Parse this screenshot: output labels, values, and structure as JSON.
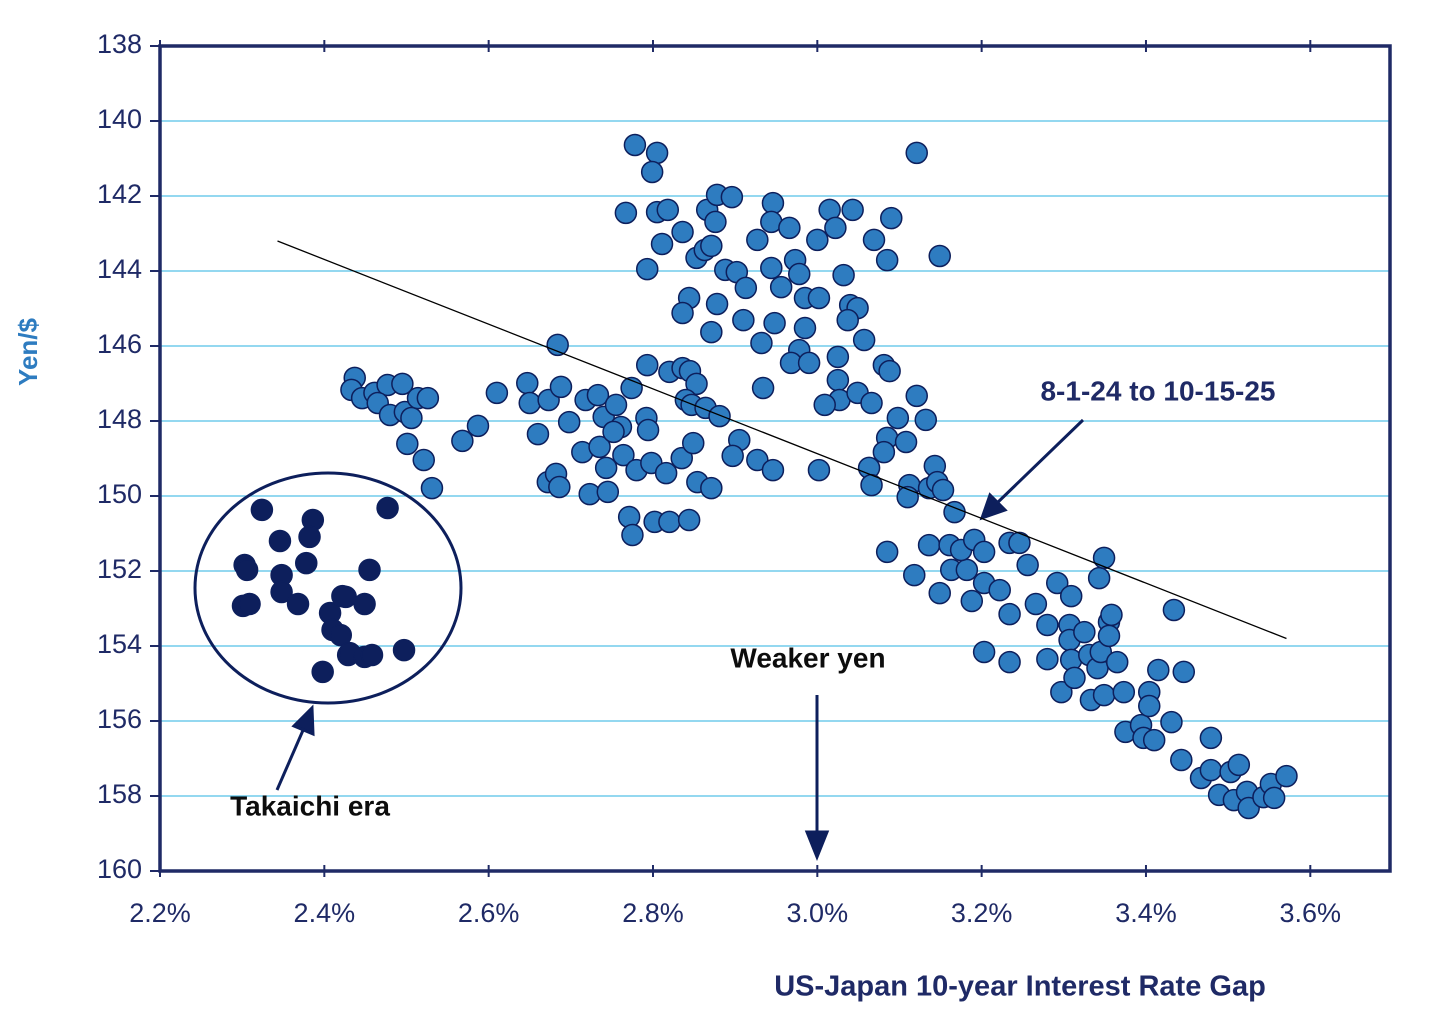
{
  "chart_data": {
    "type": "scatter",
    "x_label": "US-Japan 10-year Interest Rate Gap",
    "y_label": "Yen/$",
    "xlim": [
      2.2,
      3.697
    ],
    "ylim": [
      138,
      160
    ],
    "y_inverted": true,
    "grid": true,
    "xticks": [
      {
        "value": 2.2,
        "label": "2.2%"
      },
      {
        "value": 2.4,
        "label": "2.4%"
      },
      {
        "value": 2.6,
        "label": "2.6%"
      },
      {
        "value": 2.8,
        "label": "2.8%"
      },
      {
        "value": 3.0,
        "label": "3.0%"
      },
      {
        "value": 3.2,
        "label": "3.2%"
      },
      {
        "value": 3.4,
        "label": "3.4%"
      },
      {
        "value": 3.6,
        "label": "3.6%"
      }
    ],
    "yticks": [
      138,
      140,
      142,
      144,
      146,
      148,
      150,
      152,
      154,
      156,
      158,
      160
    ],
    "annotations": [
      "8-1-24 to 10-15-25",
      "Weaker yen",
      "Takaichi era"
    ],
    "trendline": {
      "x": [
        2.343,
        3.571
      ],
      "y": [
        143.2,
        153.8
      ],
      "color": "#000000"
    },
    "series": [
      {
        "color": "#2e7cc0",
        "x": [
          2.437,
          2.433,
          2.446,
          2.461,
          2.477,
          2.465,
          2.48,
          2.495,
          2.498,
          2.506,
          2.514,
          2.526,
          2.501,
          2.521,
          2.531,
          2.568,
          2.587,
          2.61,
          2.647,
          2.65,
          2.673,
          2.684,
          2.688,
          2.66,
          2.698,
          2.672,
          2.682,
          2.686,
          2.714,
          2.723,
          2.718,
          2.733,
          2.74,
          2.735,
          2.743,
          2.745,
          2.755,
          2.761,
          2.752,
          2.764,
          2.774,
          2.78,
          2.771,
          2.775,
          2.792,
          2.794,
          2.793,
          2.798,
          2.802,
          2.816,
          2.82,
          2.82,
          2.836,
          2.845,
          2.853,
          2.84,
          2.847,
          2.835,
          2.849,
          2.844,
          2.854,
          2.871,
          2.864,
          2.881,
          2.778,
          2.805,
          2.799,
          2.767,
          2.805,
          2.818,
          2.811,
          2.793,
          2.836,
          2.853,
          2.863,
          2.844,
          2.836,
          2.871,
          2.866,
          2.878,
          2.896,
          2.876,
          2.871,
          2.888,
          2.878,
          2.902,
          2.913,
          2.91,
          2.932,
          2.934,
          2.946,
          2.944,
          2.927,
          2.944,
          2.956,
          2.948,
          2.966,
          2.973,
          2.978,
          2.985,
          2.985,
          2.978,
          2.968,
          2.99,
          3.0,
          3.015,
          3.022,
          3.043,
          3.032,
          3.002,
          3.04,
          3.049,
          3.037,
          3.057,
          3.025,
          3.025,
          3.027,
          3.009,
          3.049,
          3.066,
          3.069,
          3.09,
          3.085,
          3.081,
          3.088,
          3.121,
          3.149,
          2.905,
          2.897,
          2.927,
          2.946,
          3.002,
          3.063,
          3.066,
          3.085,
          3.081,
          3.098,
          3.108,
          3.121,
          3.132,
          3.085,
          3.118,
          3.112,
          3.11,
          3.136,
          3.143,
          3.146,
          3.153,
          3.167,
          3.136,
          3.161,
          3.149,
          3.163,
          3.182,
          3.175,
          3.191,
          3.203,
          3.188,
          3.203,
          3.203,
          3.222,
          3.234,
          3.246,
          3.234,
          3.234,
          3.256,
          3.266,
          3.28,
          3.28,
          3.292,
          3.297,
          3.309,
          3.307,
          3.307,
          3.309,
          3.313,
          3.325,
          3.331,
          3.333,
          3.341,
          3.345,
          3.343,
          3.349,
          3.355,
          3.355,
          3.358,
          3.349,
          3.365,
          3.373,
          3.375,
          3.394,
          3.404,
          3.404,
          3.397,
          3.41,
          3.415,
          3.431,
          3.434,
          3.443,
          3.446,
          3.467,
          3.479,
          3.479,
          3.489,
          3.507,
          3.503,
          3.513,
          3.523,
          3.525,
          3.543,
          3.552,
          3.556,
          3.571
        ],
        "y": [
          146.85,
          147.17,
          147.39,
          147.25,
          147.04,
          147.52,
          147.84,
          147.01,
          147.76,
          147.92,
          147.39,
          147.39,
          148.61,
          149.04,
          149.79,
          148.53,
          148.13,
          147.25,
          146.99,
          147.52,
          147.44,
          145.97,
          147.09,
          148.35,
          148.03,
          149.63,
          149.41,
          149.76,
          148.83,
          149.95,
          147.44,
          147.31,
          147.89,
          148.69,
          149.25,
          149.89,
          147.57,
          148.16,
          148.29,
          148.91,
          147.12,
          149.31,
          150.56,
          151.04,
          147.92,
          148.24,
          146.51,
          149.12,
          150.69,
          149.39,
          150.69,
          146.69,
          146.59,
          146.67,
          147.01,
          147.44,
          147.57,
          148.99,
          148.59,
          150.64,
          149.63,
          149.79,
          147.65,
          147.87,
          140.64,
          140.85,
          141.36,
          142.45,
          142.43,
          142.37,
          143.28,
          143.95,
          142.96,
          143.65,
          143.44,
          144.72,
          145.12,
          145.63,
          142.37,
          141.97,
          142.03,
          142.69,
          143.33,
          143.97,
          144.88,
          144.03,
          144.45,
          145.31,
          145.92,
          147.12,
          142.19,
          142.69,
          143.17,
          143.92,
          144.43,
          145.39,
          142.85,
          143.71,
          144.08,
          144.72,
          145.52,
          146.11,
          146.45,
          146.45,
          143.17,
          142.37,
          142.85,
          142.37,
          144.11,
          144.72,
          144.91,
          144.99,
          145.31,
          145.84,
          146.29,
          146.91,
          147.44,
          147.57,
          147.25,
          147.52,
          143.17,
          142.59,
          143.71,
          146.51,
          146.67,
          140.85,
          143.6,
          148.51,
          148.93,
          149.04,
          149.31,
          149.31,
          149.25,
          149.71,
          148.45,
          148.83,
          147.92,
          148.56,
          147.33,
          147.97,
          151.49,
          152.11,
          149.71,
          150.03,
          149.79,
          149.2,
          149.63,
          149.84,
          150.43,
          151.31,
          151.31,
          152.59,
          151.97,
          151.97,
          151.44,
          151.17,
          151.49,
          152.8,
          154.16,
          152.32,
          152.51,
          151.25,
          151.25,
          153.15,
          154.43,
          151.84,
          152.88,
          153.44,
          154.35,
          152.32,
          155.23,
          152.67,
          153.44,
          153.84,
          154.37,
          154.85,
          153.63,
          154.24,
          155.44,
          154.59,
          154.16,
          152.19,
          151.65,
          153.36,
          153.73,
          153.17,
          155.31,
          154.43,
          155.23,
          156.29,
          156.11,
          155.23,
          155.6,
          156.45,
          156.51,
          154.64,
          156.03,
          153.04,
          157.04,
          154.69,
          157.52,
          156.45,
          157.31,
          157.97,
          158.11,
          157.36,
          157.17,
          157.89,
          158.32,
          158.03,
          157.68,
          158.05,
          157.47
        ]
      },
      {
        "color": "#0d1f5c",
        "x": [
          2.324,
          2.303,
          2.306,
          2.301,
          2.309,
          2.346,
          2.348,
          2.348,
          2.368,
          2.378,
          2.386,
          2.382,
          2.407,
          2.41,
          2.422,
          2.426,
          2.42,
          2.429,
          2.431,
          2.449,
          2.455,
          2.449,
          2.458,
          2.398,
          2.477,
          2.497
        ],
        "y": [
          150.37,
          151.84,
          151.97,
          152.93,
          152.88,
          151.2,
          152.11,
          152.56,
          152.88,
          151.79,
          150.64,
          151.09,
          153.12,
          153.57,
          152.67,
          152.69,
          153.71,
          154.24,
          154.19,
          152.88,
          151.97,
          154.29,
          154.24,
          154.69,
          150.32,
          154.11
        ]
      }
    ]
  }
}
